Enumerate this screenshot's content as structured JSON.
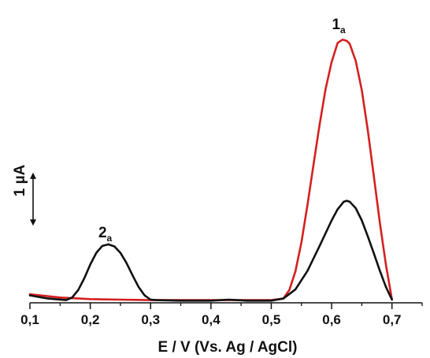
{
  "chart_data": {
    "type": "line",
    "title": "",
    "xlabel": "E / V (Vs. Ag / AgCl)",
    "ylabel": "",
    "xlim": [
      0.1,
      0.75
    ],
    "ylim": [
      0,
      5.4
    ],
    "x_ticks": [
      0.1,
      0.2,
      0.3,
      0.4,
      0.5,
      0.6,
      0.7
    ],
    "x_tick_labels": [
      "0,1",
      "0,2",
      "0,3",
      "0,4",
      "0,5",
      "0,6",
      "0,7"
    ],
    "grid": false,
    "legend": "none",
    "scale_bar": {
      "label": "1 µA",
      "value": 1.0,
      "y_start": 1.45
    },
    "annotations": [
      {
        "text": "1",
        "subscript": "a",
        "x": 0.617,
        "y": 5.15
      },
      {
        "text": "2",
        "subscript": "a",
        "x": 0.23,
        "y": 1.23
      }
    ],
    "series": [
      {
        "color": "#d42020",
        "x": [
          0.1,
          0.15,
          0.2,
          0.25,
          0.3,
          0.35,
          0.4,
          0.45,
          0.5,
          0.52,
          0.53,
          0.54,
          0.55,
          0.56,
          0.57,
          0.58,
          0.59,
          0.6,
          0.61,
          0.618,
          0.625,
          0.63,
          0.64,
          0.65,
          0.66,
          0.67,
          0.68,
          0.69,
          0.7
        ],
        "y": [
          0.16,
          0.1,
          0.07,
          0.06,
          0.05,
          0.05,
          0.05,
          0.05,
          0.05,
          0.08,
          0.24,
          0.59,
          1.14,
          1.84,
          2.6,
          3.35,
          4.02,
          4.53,
          4.89,
          4.95,
          4.93,
          4.87,
          4.55,
          4.0,
          3.25,
          2.38,
          1.5,
          0.72,
          0.06
        ]
      },
      {
        "color": "#111111",
        "x": [
          0.1,
          0.13,
          0.16,
          0.17,
          0.18,
          0.19,
          0.2,
          0.21,
          0.22,
          0.23,
          0.24,
          0.25,
          0.26,
          0.27,
          0.28,
          0.29,
          0.3,
          0.31,
          0.35,
          0.4,
          0.43,
          0.46,
          0.5,
          0.52,
          0.54,
          0.56,
          0.58,
          0.6,
          0.61,
          0.62,
          0.625,
          0.63,
          0.64,
          0.65,
          0.66,
          0.67,
          0.68,
          0.69,
          0.7
        ],
        "y": [
          0.14,
          0.08,
          0.05,
          0.1,
          0.24,
          0.46,
          0.72,
          0.94,
          1.07,
          1.1,
          1.06,
          0.94,
          0.75,
          0.52,
          0.3,
          0.14,
          0.06,
          0.05,
          0.04,
          0.04,
          0.06,
          0.04,
          0.04,
          0.08,
          0.25,
          0.6,
          1.07,
          1.55,
          1.76,
          1.9,
          1.92,
          1.9,
          1.78,
          1.55,
          1.25,
          0.93,
          0.6,
          0.3,
          0.06
        ]
      }
    ]
  }
}
